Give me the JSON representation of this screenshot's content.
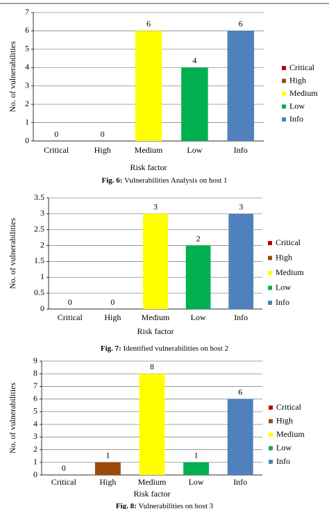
{
  "chart_data": [
    {
      "type": "bar",
      "y_label": "No. of vulnerabilities",
      "x_label": "Risk factor",
      "caption_num": "Fig. 6:",
      "caption": "Vulnerabilities Analysis on host 1",
      "categories": [
        "Critical",
        "High",
        "Medium",
        "Low",
        "Info"
      ],
      "values": [
        0,
        0,
        6,
        4,
        6
      ],
      "colors": [
        "#c00000",
        "#9c4a0a",
        "#ffff00",
        "#00b050",
        "#4f81bd"
      ],
      "ylim": [
        0,
        7
      ],
      "yticks": [
        0,
        1,
        2,
        3,
        4,
        5,
        6,
        7
      ],
      "grid": true,
      "legend": "right"
    },
    {
      "type": "bar",
      "y_label": "No. of vulnerabilities",
      "x_label": "Risk factor",
      "caption_num": "Fig. 7:",
      "caption": "Identified vulnerabilities on host 2",
      "categories": [
        "Critical",
        "High",
        "Medium",
        "Low",
        "Info"
      ],
      "values": [
        0,
        0,
        3,
        2,
        3
      ],
      "colors": [
        "#c00000",
        "#9c4a0a",
        "#ffff00",
        "#00b050",
        "#4f81bd"
      ],
      "ylim": [
        0,
        3.5
      ],
      "yticks": [
        0,
        0.5,
        1,
        1.5,
        2,
        2.5,
        3,
        3.5
      ],
      "grid": true,
      "legend": "right"
    },
    {
      "type": "bar",
      "y_label": "No. of vulnerabilities",
      "x_label": "Risk factor",
      "caption_num": "Fig. 8:",
      "caption": "Vulnerabilities on host 3",
      "categories": [
        "Critical",
        "High",
        "Medium",
        "Low",
        "Info"
      ],
      "values": [
        0,
        1,
        8,
        1,
        6
      ],
      "colors": [
        "#c00000",
        "#9c4a0a",
        "#ffff00",
        "#00b050",
        "#4f81bd"
      ],
      "ylim": [
        0,
        9
      ],
      "yticks": [
        0,
        1,
        2,
        3,
        4,
        5,
        6,
        7,
        8,
        9
      ],
      "grid": true,
      "legend": "right"
    }
  ]
}
